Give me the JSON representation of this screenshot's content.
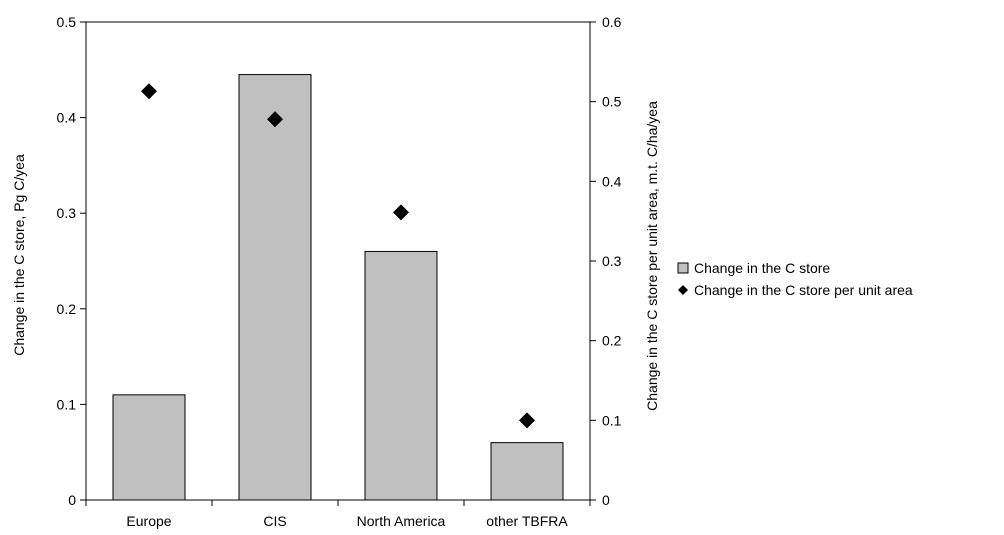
{
  "chart_data": {
    "type": "bar",
    "categories": [
      "Europe",
      "CIS",
      "North America",
      "other TBFRA"
    ],
    "series": [
      {
        "name": "Change in the C store",
        "type": "bar",
        "axis": "left",
        "values": [
          0.11,
          0.445,
          0.26,
          0.06
        ],
        "color": "#c0c0c0"
      },
      {
        "name": "Change in the C store per unit area",
        "type": "scatter",
        "axis": "right",
        "marker": "diamond",
        "values": [
          0.513,
          0.478,
          0.361,
          0.1
        ],
        "color": "#000000"
      }
    ],
    "ylabel": "Change in the C store, Pg C/yea",
    "y2label": "Change in the C store per unit area, m.t. C/ha/yea",
    "ylim": [
      0,
      0.5
    ],
    "y2lim": [
      0,
      0.6
    ],
    "yticks": [
      "0",
      "0.1",
      "0.2",
      "0.3",
      "0.4",
      "0.5"
    ],
    "y2ticks": [
      "0",
      "0.1",
      "0.2",
      "0.3",
      "0.4",
      "0.5",
      "0.6"
    ],
    "grid": false,
    "legend_position": "right"
  }
}
